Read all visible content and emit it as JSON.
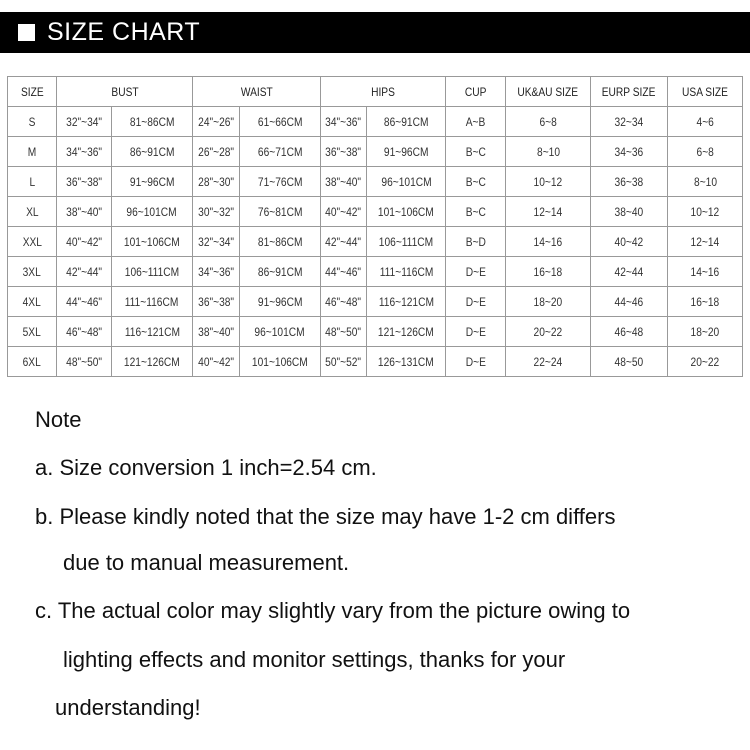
{
  "banner": {
    "title": "SIZE CHART",
    "icon": "white-square-icon"
  },
  "table": {
    "headers": [
      "SIZE",
      "BUST",
      "WAIST",
      "HIPS",
      "CUP",
      "UK&AU SIZE",
      "EURP SIZE",
      "USA SIZE"
    ],
    "rows": [
      [
        "S",
        "32\"~34\"",
        "81~86CM",
        "24\"~26\"",
        "61~66CM",
        "34\"~36\"",
        "86~91CM",
        "A~B",
        "6~8",
        "32~34",
        "4~6"
      ],
      [
        "M",
        "34\"~36\"",
        "86~91CM",
        "26\"~28\"",
        "66~71CM",
        "36\"~38\"",
        "91~96CM",
        "B~C",
        "8~10",
        "34~36",
        "6~8"
      ],
      [
        "L",
        "36\"~38\"",
        "91~96CM",
        "28\"~30\"",
        "71~76CM",
        "38\"~40\"",
        "96~101CM",
        "B~C",
        "10~12",
        "36~38",
        "8~10"
      ],
      [
        "XL",
        "38\"~40\"",
        "96~101CM",
        "30\"~32\"",
        "76~81CM",
        "40\"~42\"",
        "101~106CM",
        "B~C",
        "12~14",
        "38~40",
        "10~12"
      ],
      [
        "XXL",
        "40\"~42\"",
        "101~106CM",
        "32\"~34\"",
        "81~86CM",
        "42\"~44\"",
        "106~111CM",
        "B~D",
        "14~16",
        "40~42",
        "12~14"
      ],
      [
        "3XL",
        "42\"~44\"",
        "106~111CM",
        "34\"~36\"",
        "86~91CM",
        "44\"~46\"",
        "111~116CM",
        "D~E",
        "16~18",
        "42~44",
        "14~16"
      ],
      [
        "4XL",
        "44\"~46\"",
        "111~116CM",
        "36\"~38\"",
        "91~96CM",
        "46\"~48\"",
        "116~121CM",
        "D~E",
        "18~20",
        "44~46",
        "16~18"
      ],
      [
        "5XL",
        "46\"~48\"",
        "116~121CM",
        "38\"~40\"",
        "96~101CM",
        "48\"~50\"",
        "121~126CM",
        "D~E",
        "20~22",
        "46~48",
        "18~20"
      ],
      [
        "6XL",
        "48\"~50\"",
        "121~126CM",
        "40\"~42\"",
        "101~106CM",
        "50\"~52\"",
        "126~131CM",
        "D~E",
        "22~24",
        "48~50",
        "20~22"
      ]
    ]
  },
  "notes": {
    "heading": "Note",
    "a": "a. Size conversion 1 inch=2.54 cm.",
    "b1": "b. Please kindly noted that the size may have 1-2 cm differs",
    "b2": "due to manual measurement.",
    "c1": "c. The actual color may slightly vary from the picture owing to",
    "c2": "lighting effects and monitor settings, thanks for your",
    "c3": "understanding!"
  }
}
